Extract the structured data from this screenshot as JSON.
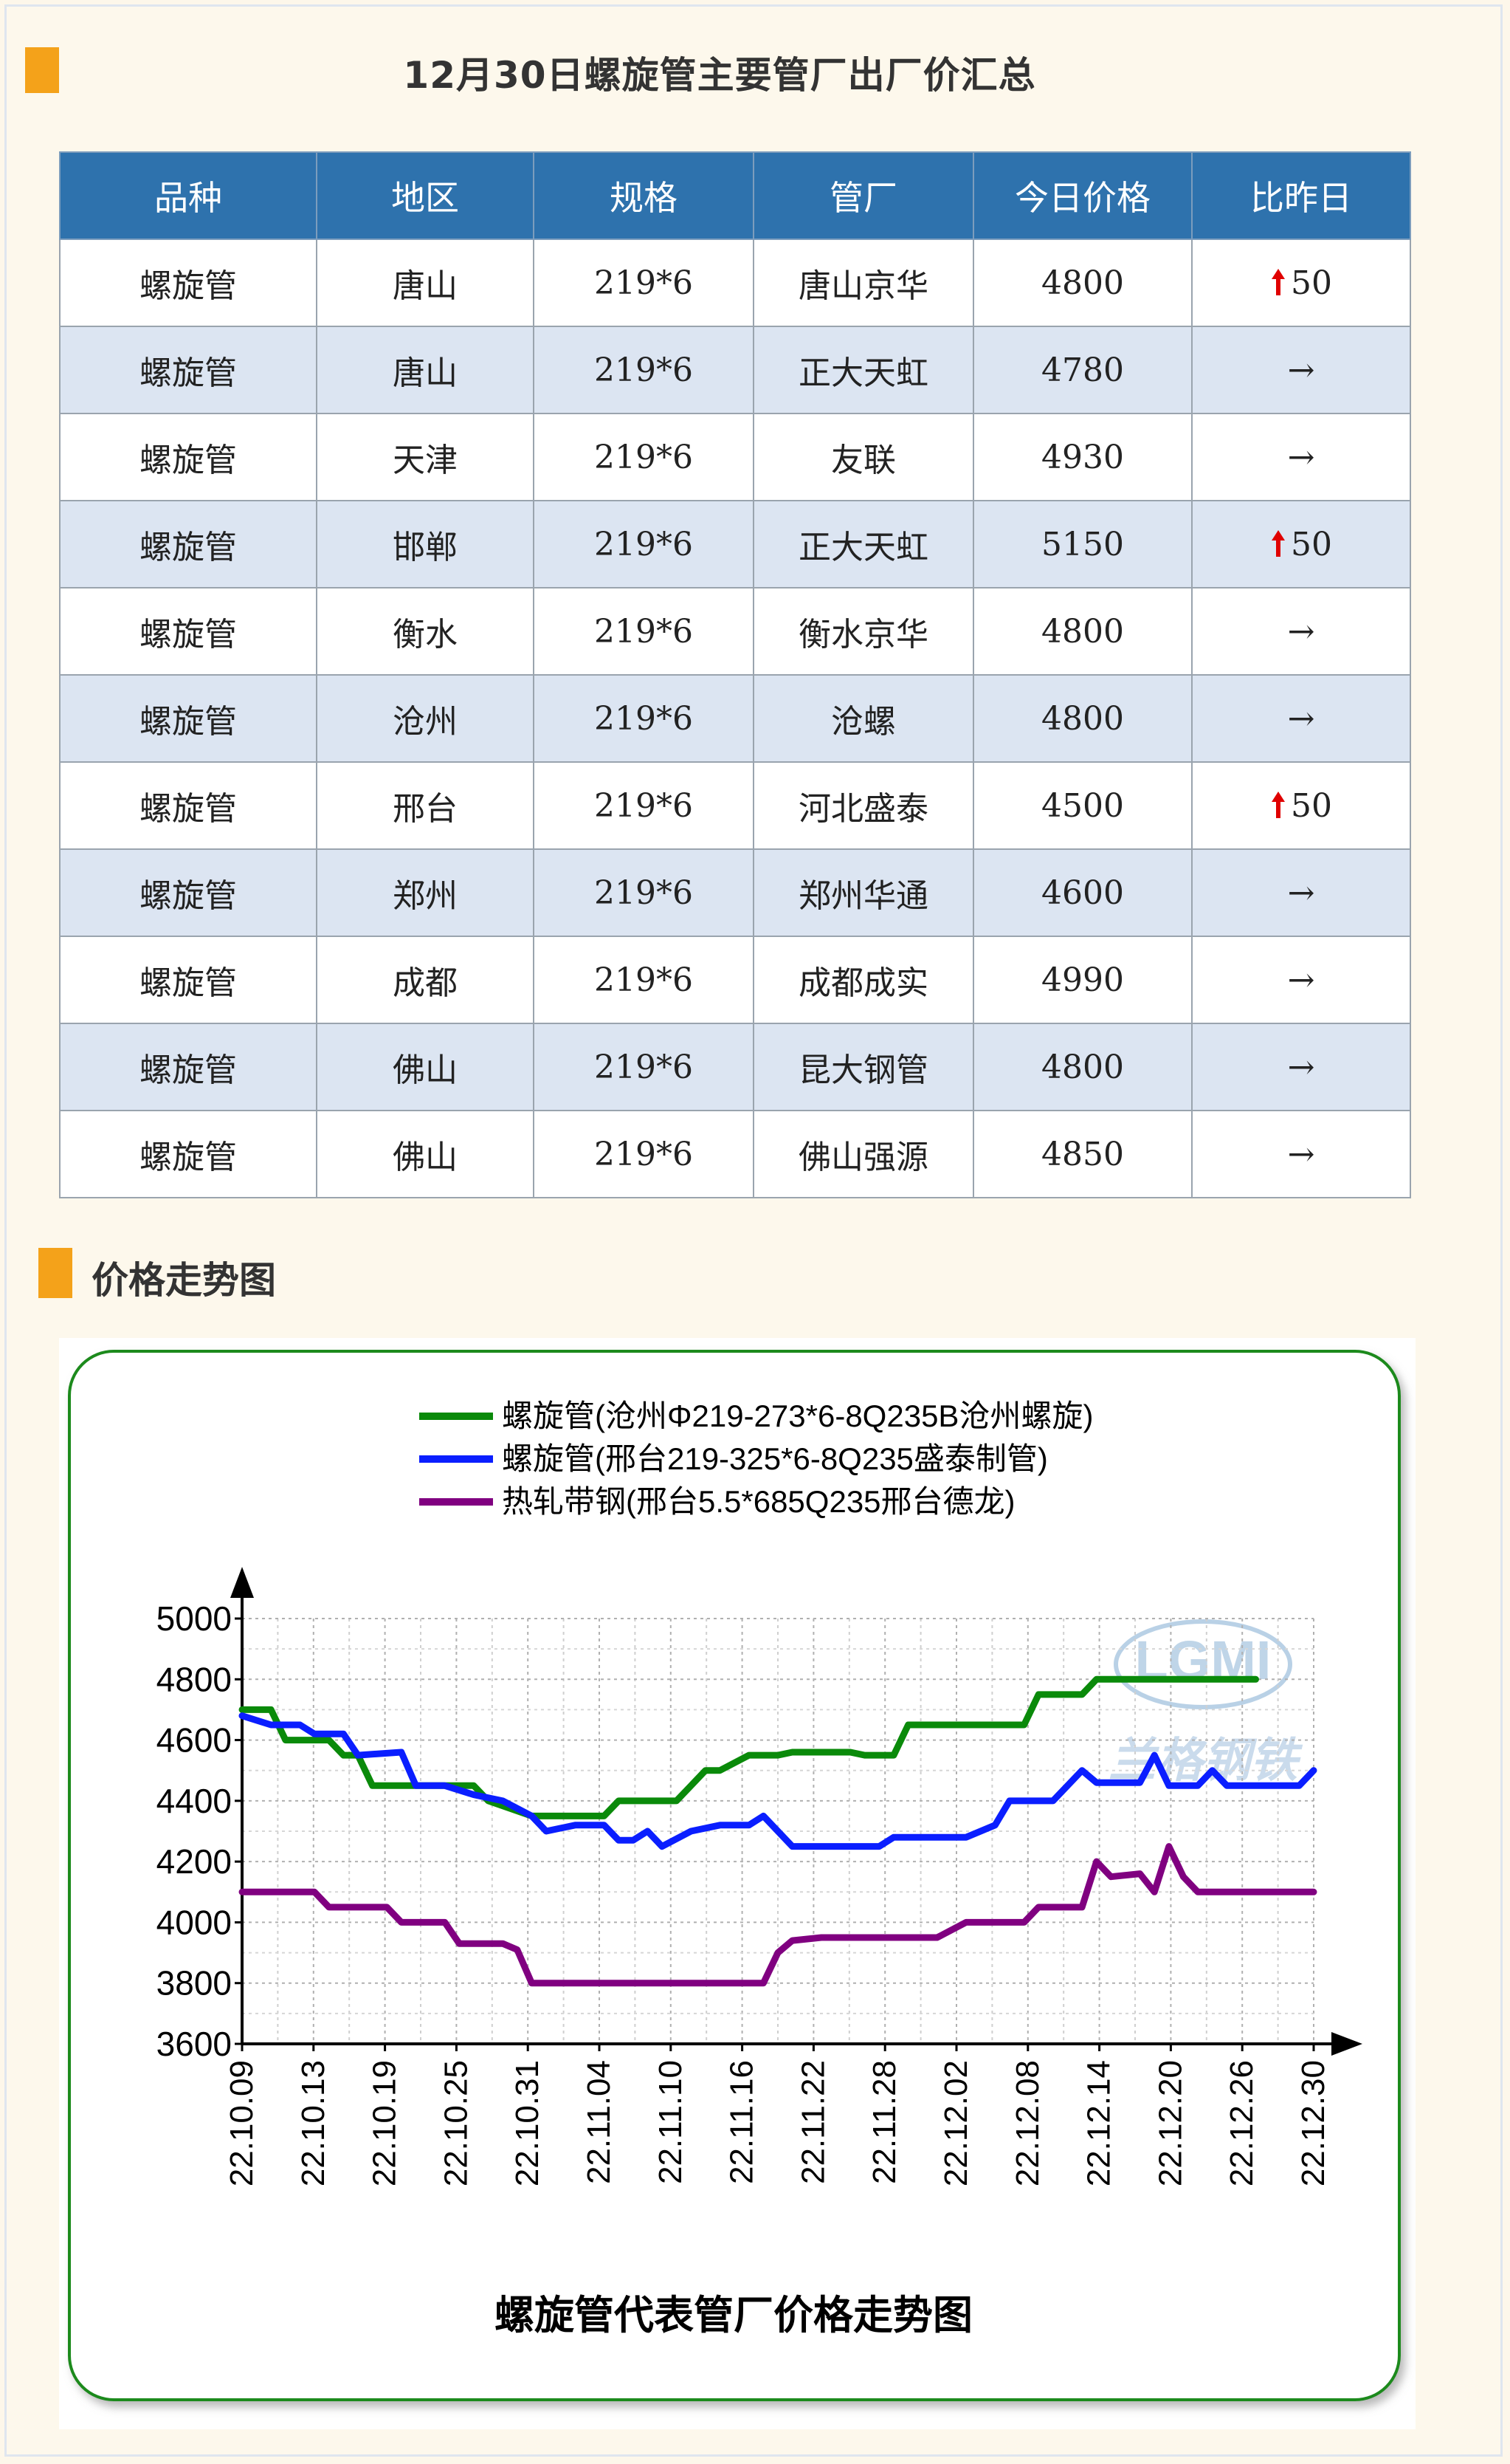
{
  "header": {
    "title": "12月30日螺旋管主要管厂出厂价汇总"
  },
  "table": {
    "columns": [
      "品种",
      "地区",
      "规格",
      "管厂",
      "今日价格",
      "比昨日"
    ],
    "rows": [
      {
        "product": "螺旋管",
        "region": "唐山",
        "spec": "219*6",
        "mill": "唐山京华",
        "price": "4800",
        "change": "50",
        "trend": "up"
      },
      {
        "product": "螺旋管",
        "region": "唐山",
        "spec": "219*6",
        "mill": "正大天虹",
        "price": "4780",
        "change": "→",
        "trend": "flat"
      },
      {
        "product": "螺旋管",
        "region": "天津",
        "spec": "219*6",
        "mill": "友联",
        "price": "4930",
        "change": "→",
        "trend": "flat"
      },
      {
        "product": "螺旋管",
        "region": "邯郸",
        "spec": "219*6",
        "mill": "正大天虹",
        "price": "5150",
        "change": "50",
        "trend": "up"
      },
      {
        "product": "螺旋管",
        "region": "衡水",
        "spec": "219*6",
        "mill": "衡水京华",
        "price": "4800",
        "change": "→",
        "trend": "flat"
      },
      {
        "product": "螺旋管",
        "region": "沧州",
        "spec": "219*6",
        "mill": "沧螺",
        "price": "4800",
        "change": "→",
        "trend": "flat"
      },
      {
        "product": "螺旋管",
        "region": "邢台",
        "spec": "219*6",
        "mill": "河北盛泰",
        "price": "4500",
        "change": "50",
        "trend": "up"
      },
      {
        "product": "螺旋管",
        "region": "郑州",
        "spec": "219*6",
        "mill": "郑州华通",
        "price": "4600",
        "change": "→",
        "trend": "flat"
      },
      {
        "product": "螺旋管",
        "region": "成都",
        "spec": "219*6",
        "mill": "成都成实",
        "price": "4990",
        "change": "→",
        "trend": "flat"
      },
      {
        "product": "螺旋管",
        "region": "佛山",
        "spec": "219*6",
        "mill": "昆大钢管",
        "price": "4800",
        "change": "→",
        "trend": "flat"
      },
      {
        "product": "螺旋管",
        "region": "佛山",
        "spec": "219*6",
        "mill": "佛山强源",
        "price": "4850",
        "change": "→",
        "trend": "flat"
      }
    ]
  },
  "section": {
    "title": "价格走势图"
  },
  "watermark": {
    "logo": "LGMI",
    "text": "兰格钢铁"
  },
  "chart_data": {
    "type": "line",
    "title": "螺旋管代表管厂价格走势图",
    "ylim": [
      3600,
      5000
    ],
    "yticks": [
      "3600",
      "3800",
      "4000",
      "4200",
      "4400",
      "4600",
      "4800",
      "5000"
    ],
    "xtick_labels": [
      "22.10.09",
      "22.10.13",
      "22.10.19",
      "22.10.25",
      "22.10.31",
      "22.11.04",
      "22.11.10",
      "22.11.16",
      "22.11.22",
      "22.11.28",
      "22.12.02",
      "22.12.08",
      "22.12.14",
      "22.12.20",
      "22.12.26",
      "22.12.30"
    ],
    "x_index_range": [
      0,
      60
    ],
    "grid": true,
    "legend_position": "top",
    "series": [
      {
        "name": "螺旋管(沧州Φ219-273*6-8Q235B沧州螺旋)",
        "color": "#0a8a0a",
        "points": [
          [
            0,
            4700
          ],
          [
            2,
            4700
          ],
          [
            3,
            4600
          ],
          [
            6,
            4600
          ],
          [
            7,
            4550
          ],
          [
            8,
            4550
          ],
          [
            9,
            4450
          ],
          [
            12,
            4450
          ],
          [
            13,
            4450
          ],
          [
            16,
            4450
          ],
          [
            17,
            4400
          ],
          [
            20,
            4350
          ],
          [
            25,
            4350
          ],
          [
            26,
            4400
          ],
          [
            30,
            4400
          ],
          [
            31,
            4450
          ],
          [
            32,
            4500
          ],
          [
            33,
            4500
          ],
          [
            35,
            4550
          ],
          [
            37,
            4550
          ],
          [
            38,
            4560
          ],
          [
            42,
            4560
          ],
          [
            43,
            4550
          ],
          [
            45,
            4550
          ],
          [
            46,
            4650
          ],
          [
            53,
            4650
          ],
          [
            54,
            4650
          ],
          [
            55,
            4750
          ],
          [
            58,
            4750
          ],
          [
            59,
            4800
          ],
          [
            60,
            4800
          ],
          [
            64,
            4800
          ],
          [
            66,
            4800
          ],
          [
            68,
            4800
          ],
          [
            70,
            4800
          ]
        ]
      },
      {
        "name": "螺旋管(邢台219-325*6-8Q235盛泰制管)",
        "color": "#0a1eff",
        "points": [
          [
            0,
            4680
          ],
          [
            2,
            4650
          ],
          [
            4,
            4650
          ],
          [
            5,
            4620
          ],
          [
            7,
            4620
          ],
          [
            8,
            4550
          ],
          [
            11,
            4560
          ],
          [
            12,
            4450
          ],
          [
            14,
            4450
          ],
          [
            16,
            4420
          ],
          [
            18,
            4400
          ],
          [
            20,
            4350
          ],
          [
            21,
            4300
          ],
          [
            23,
            4320
          ],
          [
            25,
            4320
          ],
          [
            26,
            4270
          ],
          [
            27,
            4270
          ],
          [
            28,
            4300
          ],
          [
            29,
            4250
          ],
          [
            31,
            4300
          ],
          [
            33,
            4320
          ],
          [
            35,
            4320
          ],
          [
            36,
            4350
          ],
          [
            38,
            4250
          ],
          [
            44,
            4250
          ],
          [
            45,
            4280
          ],
          [
            50,
            4280
          ],
          [
            52,
            4320
          ],
          [
            53,
            4400
          ],
          [
            56,
            4400
          ],
          [
            58,
            4500
          ],
          [
            59,
            4460
          ],
          [
            62,
            4460
          ],
          [
            63,
            4550
          ],
          [
            64,
            4450
          ],
          [
            66,
            4450
          ],
          [
            67,
            4500
          ],
          [
            68,
            4450
          ],
          [
            73,
            4450
          ],
          [
            74,
            4500
          ]
        ]
      },
      {
        "name": "热轧带钢(邢台5.5*685Q235邢台德龙)",
        "color": "#800080",
        "points": [
          [
            0,
            4100
          ],
          [
            5,
            4100
          ],
          [
            6,
            4050
          ],
          [
            10,
            4050
          ],
          [
            11,
            4000
          ],
          [
            14,
            4000
          ],
          [
            15,
            3930
          ],
          [
            18,
            3930
          ],
          [
            19,
            3910
          ],
          [
            20,
            3800
          ],
          [
            36,
            3800
          ],
          [
            37,
            3900
          ],
          [
            38,
            3940
          ],
          [
            40,
            3950
          ],
          [
            48,
            3950
          ],
          [
            50,
            4000
          ],
          [
            54,
            4000
          ],
          [
            55,
            4050
          ],
          [
            58,
            4050
          ],
          [
            59,
            4200
          ],
          [
            60,
            4150
          ],
          [
            62,
            4160
          ],
          [
            63,
            4100
          ],
          [
            64,
            4250
          ],
          [
            65,
            4150
          ],
          [
            66,
            4100
          ],
          [
            70,
            4100
          ],
          [
            74,
            4100
          ]
        ]
      }
    ]
  }
}
